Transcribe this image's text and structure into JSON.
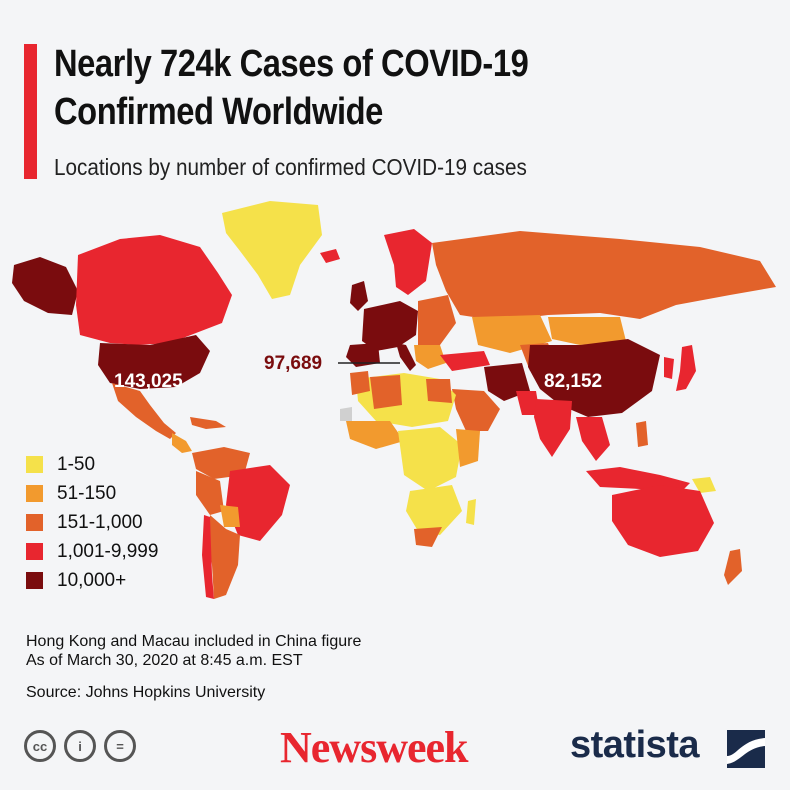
{
  "title_line1": "Nearly 724k Cases of COVID-19",
  "title_line2": "Confirmed Worldwide",
  "subtitle": "Locations by number of confirmed COVID-19 cases",
  "map_labels": {
    "us": "143,025",
    "italy": "97,689",
    "china": "82,152"
  },
  "legend": [
    {
      "label": "1-50",
      "color": "#f5e14a"
    },
    {
      "label": "51-150",
      "color": "#f29a2e"
    },
    {
      "label": "151-1,000",
      "color": "#e2622a"
    },
    {
      "label": "1,001-9,999",
      "color": "#e8262f"
    },
    {
      "label": "10,000+",
      "color": "#7a0c0e"
    }
  ],
  "notes_line1": "Hong Kong and Macau included in China figure",
  "notes_line2": "As of March 30, 2020 at 8:45 a.m. EST",
  "source": "Source: Johns Hopkins University",
  "cc": [
    "cc",
    "i",
    "="
  ],
  "brand_newsweek": "Newsweek",
  "brand_statista": "statista",
  "colors": {
    "accent": "#e8262f",
    "no_data": "#d0d0d0"
  }
}
